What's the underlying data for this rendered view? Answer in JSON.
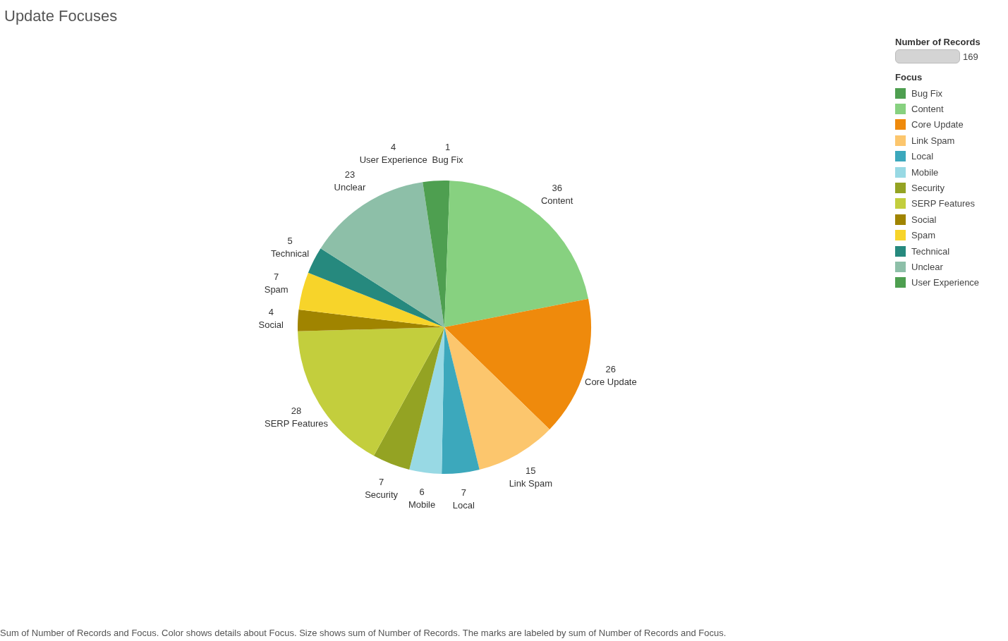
{
  "chart_data": {
    "type": "pie",
    "title": "Update Focuses",
    "legend_title": "Focus",
    "legend": "top right",
    "data_labels": true,
    "categories": [
      "Bug Fix",
      "Content",
      "Core Update",
      "Link Spam",
      "Local",
      "Mobile",
      "Security",
      "SERP Features",
      "Social",
      "Spam",
      "Technical",
      "Unclear",
      "User Experience"
    ],
    "values": [
      1,
      36,
      26,
      15,
      7,
      6,
      7,
      28,
      4,
      7,
      5,
      23,
      4
    ],
    "colors": [
      "#4e9f50",
      "#87d180",
      "#ef8a0c",
      "#fcc66d",
      "#3ca8bc",
      "#98d9e4",
      "#94a323",
      "#c3ce3d",
      "#a08400",
      "#f7d42a",
      "#26897e",
      "#8dbfa8",
      "#4e9f50"
    ],
    "annotations": [
      "Number of Records",
      "169",
      "Sum of Number of Records and Focus.  Color shows details about Focus.  Size shows sum of Number of Records.  The marks are labeled by sum of Number of Records and Focus."
    ]
  }
}
